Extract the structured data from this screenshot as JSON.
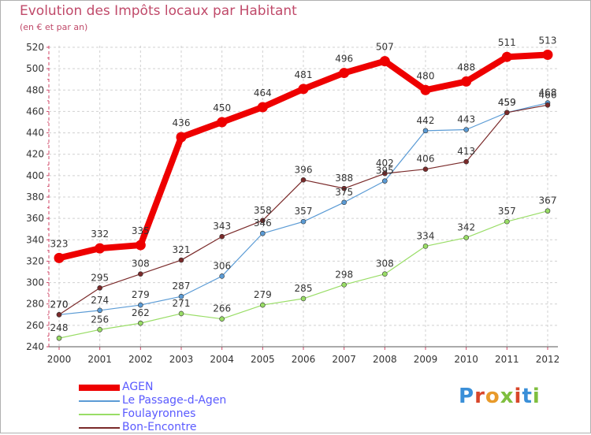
{
  "title": "Evolution des Impôts locaux par Habitant",
  "subtitle": "(en € et par an)",
  "logo": {
    "text": "Proxiti",
    "colors": [
      "#3a8fd8",
      "#e89a2a",
      "#7fbf3f",
      "#d8462a"
    ]
  },
  "chart_data": {
    "type": "line",
    "title": "Evolution des Impôts locaux par Habitant",
    "subtitle": "(en € et par an)",
    "xlabel": "",
    "ylabel": "",
    "ylim": [
      240,
      520
    ],
    "y_ticks": [
      240,
      260,
      280,
      300,
      320,
      340,
      360,
      380,
      400,
      420,
      440,
      460,
      480,
      500,
      520
    ],
    "categories": [
      "2000",
      "2001",
      "2002",
      "2003",
      "2004",
      "2005",
      "2006",
      "2007",
      "2008",
      "2009",
      "2010",
      "2011",
      "2012"
    ],
    "grid": true,
    "legend_position": "bottom-left",
    "series": [
      {
        "name": "AGEN",
        "color": "#ee0000",
        "values": [
          323,
          332,
          335,
          436,
          450,
          464,
          481,
          496,
          507,
          480,
          488,
          511,
          513
        ]
      },
      {
        "name": "Le Passage-d-Agen",
        "color": "#5b9bd5",
        "values": [
          270,
          274,
          279,
          287,
          306,
          346,
          357,
          375,
          395,
          442,
          443,
          459,
          468
        ]
      },
      {
        "name": "Foulayronnes",
        "color": "#99dd66",
        "values": [
          248,
          256,
          262,
          271,
          266,
          279,
          285,
          298,
          308,
          334,
          342,
          357,
          367
        ]
      },
      {
        "name": "Bon-Encontre",
        "color": "#7a2a2a",
        "values": [
          270,
          295,
          308,
          321,
          343,
          358,
          396,
          388,
          402,
          406,
          413,
          459,
          466
        ]
      }
    ]
  }
}
